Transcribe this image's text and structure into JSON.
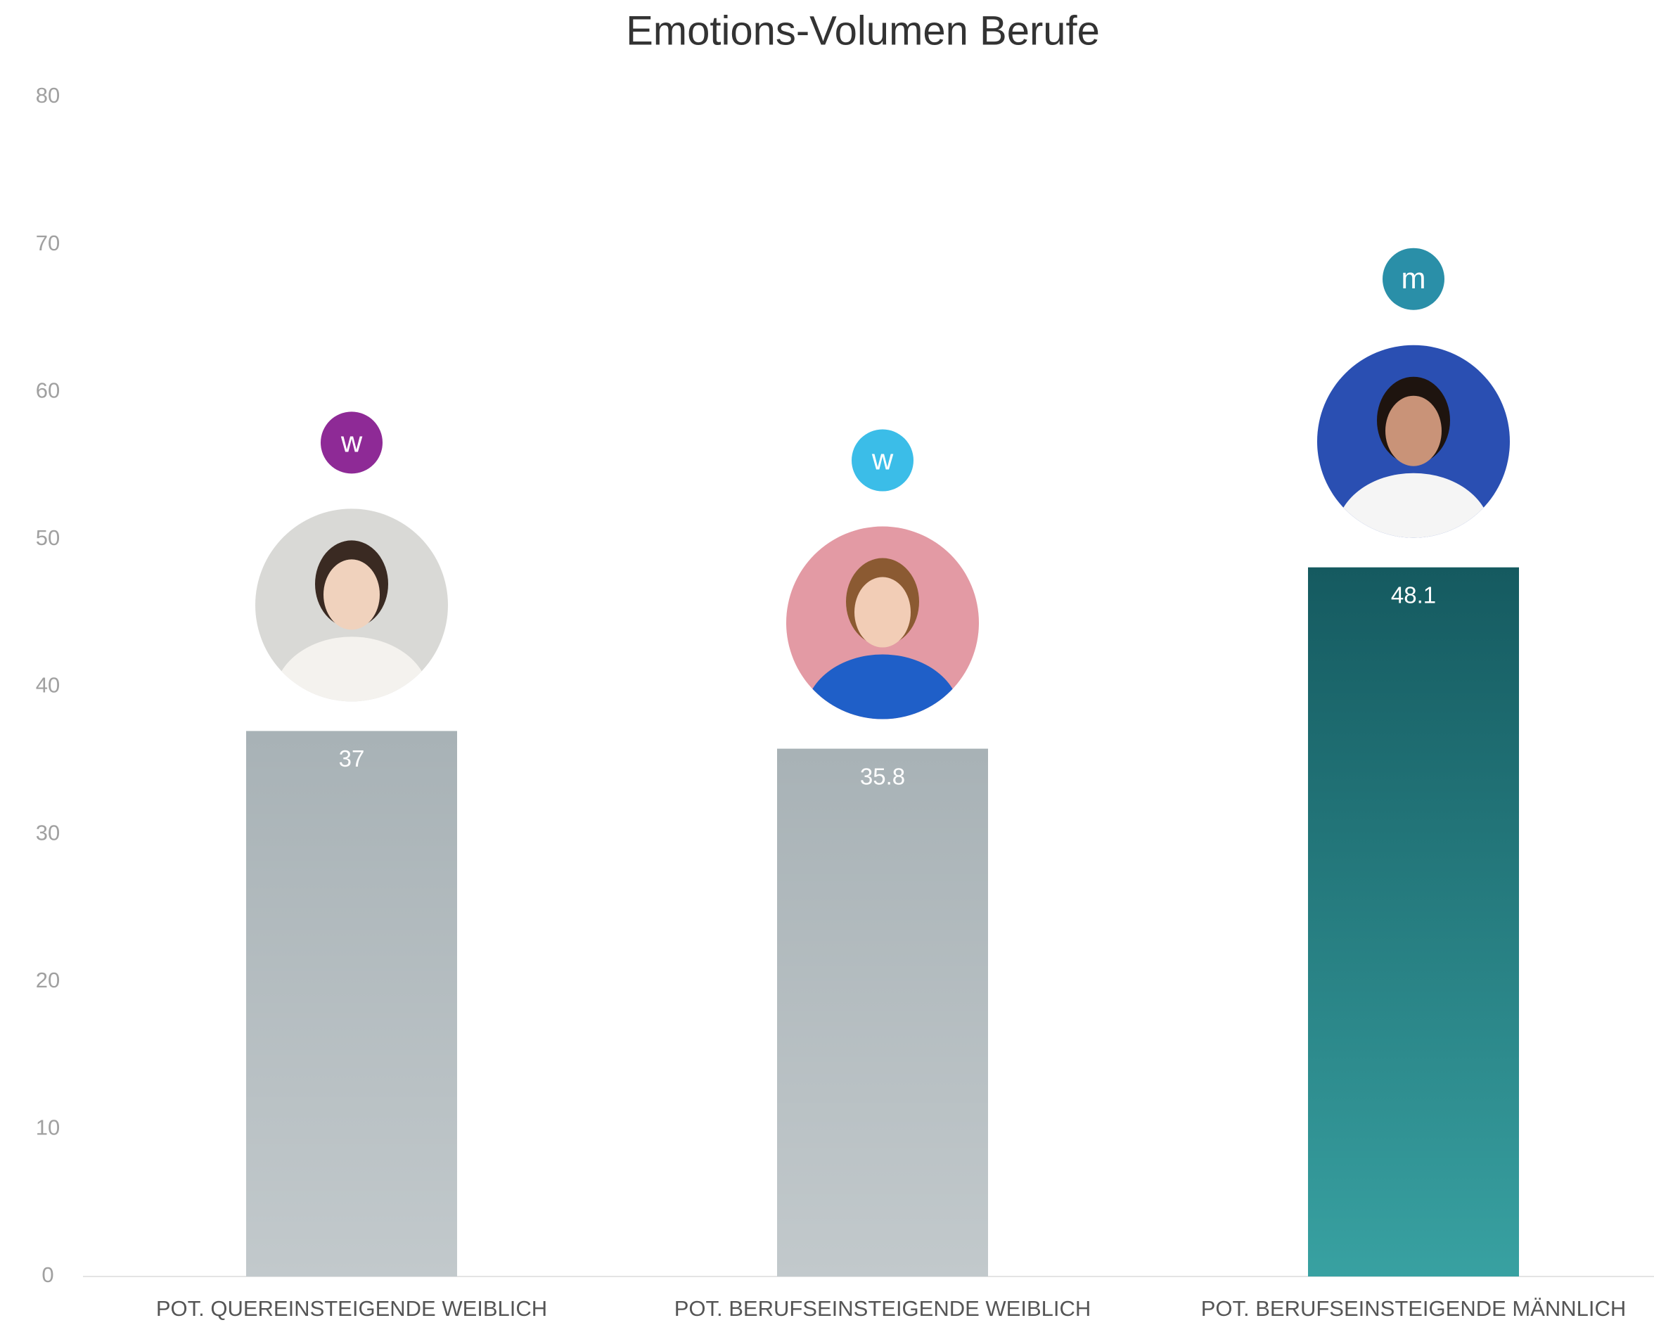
{
  "chart_data": {
    "type": "bar",
    "title": "Emotions-Volumen Berufe",
    "categories": [
      "POT. QUEREINSTEIGENDE WEIBLICH",
      "POT. BERUFSEINSTEIGENDE WEIBLICH",
      "POT. BERUFSEINSTEIGENDE MÄNNLICH"
    ],
    "values": [
      37,
      35.8,
      48.1
    ],
    "colors": [
      "#a8b2b6",
      "#a8b2b6",
      "#155a60"
    ],
    "badges": [
      "w",
      "w",
      "m"
    ],
    "badge_colors": [
      "#8e2a96",
      "#3bbde8",
      "#2a8fa8"
    ],
    "ylim": [
      0,
      80
    ],
    "yticks": [
      0,
      10,
      20,
      30,
      40,
      50,
      60,
      70,
      80
    ],
    "grid": false
  }
}
